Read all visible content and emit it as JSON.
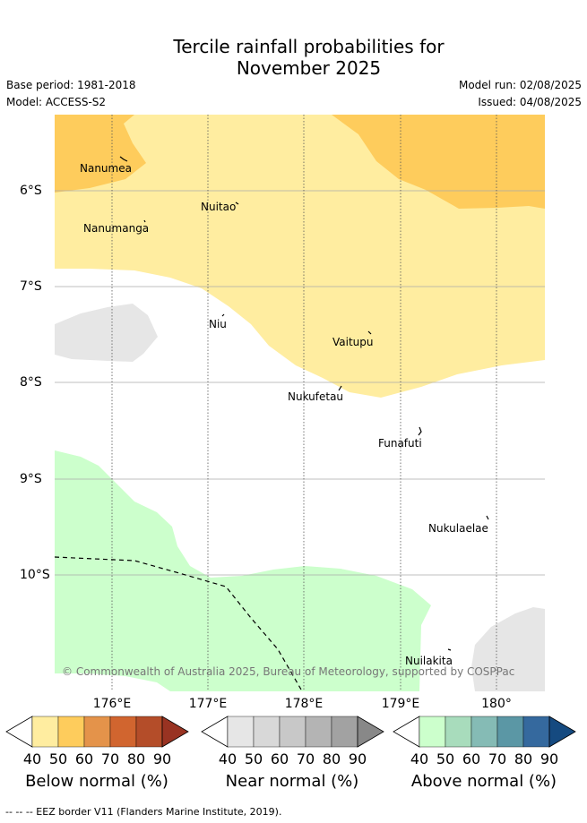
{
  "title_line1": "Tercile rainfall probabilities for",
  "title_line2": "November 2025",
  "base_period": "Base period: 1981-2018",
  "model": "Model: ACCESS-S2",
  "model_run": "Model run: 02/08/2025",
  "issued": "Issued: 04/08/2025",
  "copyright": "© Commonwealth of Australia 2025, Bureau of Meteorology, supported by COSPPac",
  "footnote": "--  --  -- EEZ border V11 (Flanders Marine Institute, 2019).",
  "lon_labels": [
    "176°E",
    "177°E",
    "178°E",
    "179°E",
    "180°"
  ],
  "lat_labels": [
    "6°S",
    "7°S",
    "8°S",
    "9°S",
    "10°S"
  ],
  "places": {
    "nanumea": "Nanumea",
    "nuitao": "Nuitao",
    "nanumanga": "Nanumanga",
    "niu": "Niu",
    "vaitupu": "Vaitupu",
    "nukufetau": "Nukufetau",
    "funafuti": "Funafuti",
    "nukulaelae": "Nukulaelae",
    "nuilakita": "Nuilakita"
  },
  "colorbars": {
    "below": {
      "label": "Below normal (%)",
      "colors": [
        "#ffeda0",
        "#fecc5c",
        "#e4934a",
        "#d1652f",
        "#b44d29",
        "#993322"
      ]
    },
    "near": {
      "label": "Near normal (%)",
      "colors": [
        "#e6e6e6",
        "#d8d8d8",
        "#c8c8c8",
        "#b4b4b4",
        "#a2a2a2",
        "#888888"
      ]
    },
    "above": {
      "label": "Above normal (%)",
      "colors": [
        "#ccffcc",
        "#a8dcbc",
        "#85bbb5",
        "#5b97a5",
        "#35699e",
        "#154a80"
      ]
    },
    "ticks": [
      "40",
      "50",
      "60",
      "70",
      "80",
      "90"
    ]
  },
  "colors": {
    "below_40": "#ffeda0",
    "below_50": "#fecc5c",
    "near_40": "#e6e6e6",
    "above_40": "#ccffcc"
  }
}
